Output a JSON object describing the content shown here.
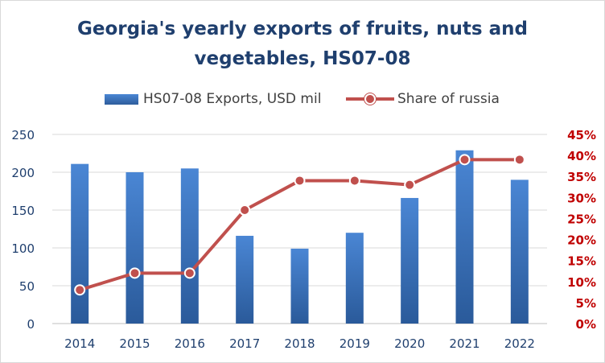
{
  "chart_data": {
    "type": "bar",
    "title_lines": [
      "Georgia's yearly exports of fruits, nuts and",
      "vegetables, HS07-08"
    ],
    "categories": [
      "2014",
      "2015",
      "2016",
      "2017",
      "2018",
      "2019",
      "2020",
      "2021",
      "2022"
    ],
    "series": [
      {
        "name": "HS07-08 Exports, USD mil",
        "type": "bar",
        "axis": "left",
        "color": "#3b72bf",
        "values": [
          211,
          200,
          205,
          116,
          99,
          120,
          166,
          229,
          190
        ]
      },
      {
        "name": "Share of russia",
        "type": "line",
        "axis": "right",
        "color": "#c0504d",
        "marker": "circle",
        "values": [
          8,
          12,
          12,
          27,
          34,
          34,
          33,
          39,
          39
        ]
      }
    ],
    "y_left": {
      "min": 0,
      "max": 250,
      "ticks": [
        "0",
        "50",
        "100",
        "150",
        "200",
        "250"
      ],
      "color": "#1f3f6e"
    },
    "y_right": {
      "min": 0,
      "max": 45,
      "ticks": [
        "0%",
        "5%",
        "10%",
        "15%",
        "20%",
        "25%",
        "30%",
        "35%",
        "40%",
        "45%"
      ],
      "color": "#c00000"
    },
    "grid": true,
    "legend_position": "top"
  }
}
